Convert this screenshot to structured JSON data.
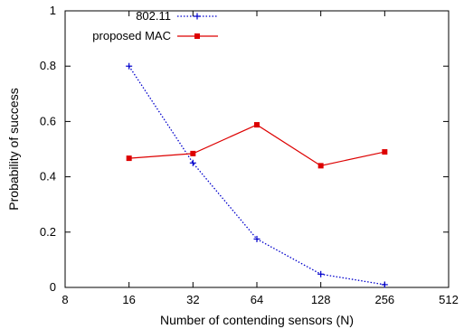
{
  "chart_data": {
    "type": "line",
    "xlabel": "Number of contending sensors (N)",
    "ylabel": "Probability of success",
    "x_scale": "log2",
    "xlim": [
      8,
      512
    ],
    "ylim": [
      0,
      1
    ],
    "x_ticks": [
      "8",
      "16",
      "32",
      "64",
      "128",
      "256",
      "512"
    ],
    "y_ticks": [
      "0",
      "0.2",
      "0.4",
      "0.6",
      "0.8",
      "1"
    ],
    "grid": false,
    "legend_position": "top-left",
    "series": [
      {
        "name": "802.11",
        "color": "#0000cc",
        "line_style": "dotted",
        "marker": "plus",
        "x": [
          16,
          32,
          64,
          128,
          256
        ],
        "y": [
          0.8,
          0.45,
          0.175,
          0.048,
          0.01
        ]
      },
      {
        "name": "proposed MAC",
        "color": "#dd0000",
        "line_style": "solid",
        "marker": "square",
        "x": [
          16,
          32,
          64,
          128,
          256
        ],
        "y": [
          0.467,
          0.484,
          0.588,
          0.44,
          0.49
        ]
      }
    ]
  }
}
